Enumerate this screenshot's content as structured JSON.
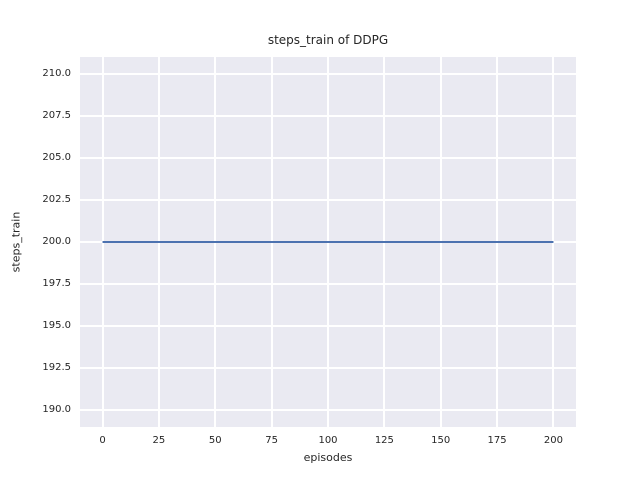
{
  "figure": {
    "background": "#ffffff",
    "text_color": "#262626"
  },
  "chart_data": {
    "type": "line",
    "title": "steps_train of DDPG",
    "xlabel": "episodes",
    "ylabel": "steps_train",
    "x": [
      0,
      200
    ],
    "series": [
      {
        "name": "steps_train",
        "color": "#4c72b0",
        "values": [
          200,
          200
        ]
      }
    ],
    "xlim": [
      -10,
      210
    ],
    "ylim": [
      189,
      211
    ],
    "xticks": [
      0,
      25,
      50,
      75,
      100,
      125,
      150,
      175,
      200
    ],
    "xtick_labels": [
      "0",
      "25",
      "50",
      "75",
      "100",
      "125",
      "150",
      "175",
      "200"
    ],
    "yticks": [
      190,
      192.5,
      195,
      197.5,
      200,
      202.5,
      205,
      207.5,
      210
    ],
    "ytick_labels": [
      "190.0",
      "192.5",
      "195.0",
      "197.5",
      "200.0",
      "202.5",
      "205.0",
      "207.5",
      "210.0"
    ],
    "grid": true,
    "legend": "none",
    "plot_background": "#eaeaf2",
    "grid_color": "#ffffff",
    "line_width": 2
  }
}
